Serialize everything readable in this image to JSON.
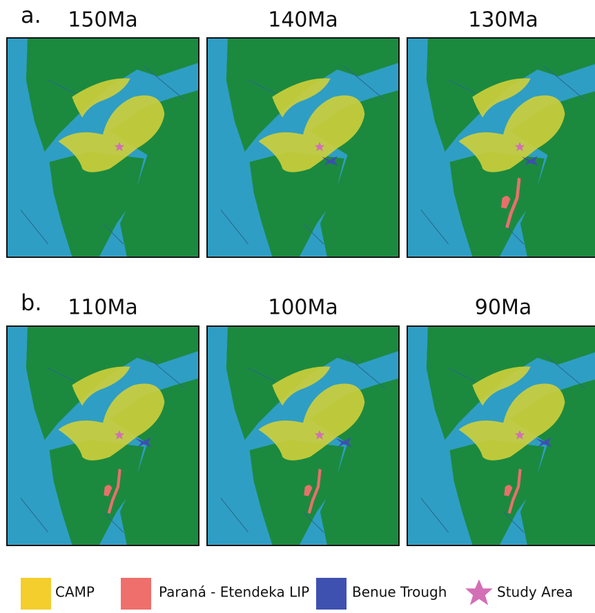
{
  "panels": [
    {
      "label": "a.",
      "maps": [
        "150Ma",
        "140Ma",
        "130Ma"
      ]
    },
    {
      "label": "b.",
      "maps": [
        "110Ma",
        "100Ma",
        "90Ma"
      ]
    }
  ],
  "legend": [
    "CAMP",
    "Paraná - Etendeka LIP",
    "Benue Trough",
    "Study Area"
  ]
}
